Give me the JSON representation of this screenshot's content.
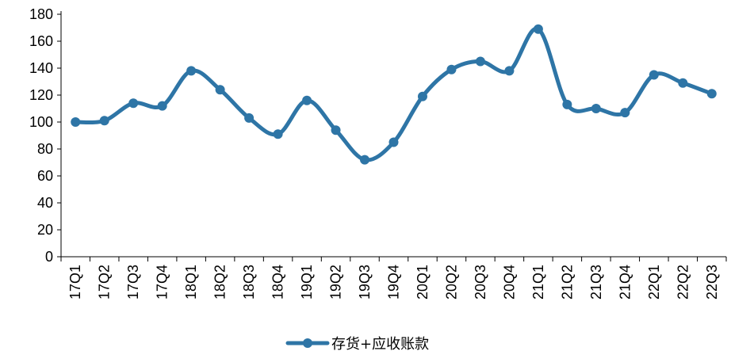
{
  "chart_data": {
    "type": "line",
    "title": "",
    "xlabel": "",
    "ylabel": "",
    "categories": [
      "17Q1",
      "17Q2",
      "17Q3",
      "17Q4",
      "18Q1",
      "18Q2",
      "18Q3",
      "18Q4",
      "19Q1",
      "19Q2",
      "19Q3",
      "19Q4",
      "20Q1",
      "20Q2",
      "20Q3",
      "20Q4",
      "21Q1",
      "21Q2",
      "21Q3",
      "21Q4",
      "22Q1",
      "22Q2",
      "22Q3"
    ],
    "series": [
      {
        "name": "存货+应收账款",
        "values": [
          100,
          101,
          114,
          112,
          138,
          124,
          103,
          91,
          116,
          94,
          72,
          85,
          119,
          139,
          145,
          138,
          169,
          113,
          110,
          107,
          135,
          129,
          121
        ],
        "color": "#2E75A6"
      }
    ],
    "ylim": [
      0,
      180
    ],
    "yticks": [
      0,
      20,
      40,
      60,
      80,
      100,
      120,
      140,
      160,
      180
    ],
    "grid": false,
    "smooth": true,
    "legend_position": "bottom-center"
  }
}
